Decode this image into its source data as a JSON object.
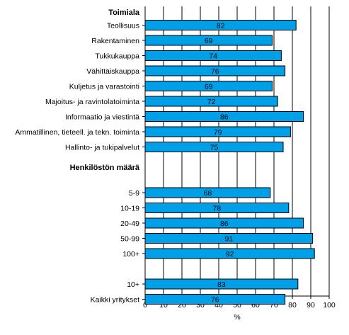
{
  "chart_data": {
    "type": "bar",
    "orientation": "horizontal",
    "xlabel": "%",
    "xlim": [
      0,
      100
    ],
    "x_ticks": [
      "0",
      "10",
      "20",
      "30",
      "40",
      "50",
      "60",
      "70",
      "80",
      "90",
      "100"
    ],
    "grid_x": true,
    "bar_color": "#00a0e8",
    "groups": [
      {
        "title": "Toimiala",
        "categories": [
          "Teollisuus",
          "Rakentaminen",
          "Tukkukauppa",
          "Vähittäiskauppa",
          "Kuljetus ja varastointi",
          "Majoitus- ja ravintolatoiminta",
          "Informaatio ja viestintä",
          "Ammatillinen, tieteell. ja tekn. toiminta",
          "Hallinto- ja tukipalvelut"
        ],
        "values": [
          82,
          69,
          74,
          76,
          69,
          72,
          86,
          79,
          75
        ]
      },
      {
        "title": "Henkilöstön määrä",
        "categories": [
          "5-9",
          "10-19",
          "20-49",
          "50-99",
          "100+"
        ],
        "values": [
          68,
          78,
          86,
          91,
          92
        ]
      },
      {
        "title": "",
        "categories": [
          "10+",
          "Kaikki yritykset"
        ],
        "values": [
          83,
          76
        ]
      }
    ]
  }
}
